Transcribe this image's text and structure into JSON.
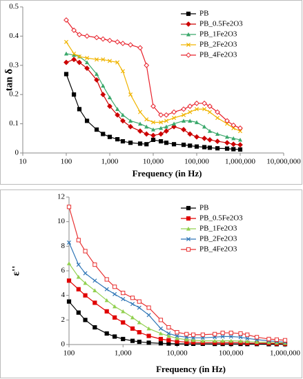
{
  "chart_data": [
    {
      "type": "line",
      "ylabel": "tan δ",
      "xlabel": "Frequency (in Hz)",
      "xscale": "log",
      "legend": "upper right",
      "xlim": [
        10,
        10000000
      ],
      "xticks": [
        10,
        100,
        {
          "value": 1000,
          "label": "1,000"
        },
        {
          "value": 10000,
          "label": "10,000"
        },
        {
          "value": 100000,
          "label": "100,000"
        },
        {
          "value": 1000000,
          "label": "1,000,000"
        },
        {
          "value": 10000000,
          "label": "10,000,000"
        }
      ],
      "ylim": [
        0,
        0.5
      ],
      "yticks": [
        0,
        0.1,
        0.2,
        0.3,
        0.4,
        0.5
      ],
      "x": [
        100,
        150,
        200,
        300,
        500,
        700,
        1000,
        1500,
        2000,
        3000,
        5000,
        7000,
        10000,
        15000,
        20000,
        30000,
        50000,
        70000,
        100000,
        150000,
        200000,
        300000,
        500000,
        700000,
        1000000
      ],
      "series": [
        {
          "name": "PB",
          "color": "#000000",
          "marker": "square",
          "values": [
            0.27,
            0.2,
            0.15,
            0.11,
            0.08,
            0.065,
            0.055,
            0.047,
            0.04,
            0.035,
            0.032,
            0.03,
            0.045,
            0.04,
            0.035,
            0.03,
            0.028,
            0.025,
            0.022,
            0.02,
            0.018,
            0.016,
            0.015,
            0.013,
            0.012
          ]
        },
        {
          "name": "PB_0.5Fe2O3",
          "color": "#cc0000",
          "marker": "diamond",
          "values": [
            0.31,
            0.32,
            0.31,
            0.29,
            0.25,
            0.2,
            0.16,
            0.13,
            0.11,
            0.09,
            0.075,
            0.065,
            0.06,
            0.065,
            0.075,
            0.09,
            0.08,
            0.065,
            0.055,
            0.05,
            0.045,
            0.04,
            0.035,
            0.03,
            0.028
          ]
        },
        {
          "name": "PB_1Fe2O3",
          "color": "#3aa86b",
          "marker": "triangle",
          "values": [
            0.34,
            0.335,
            0.33,
            0.31,
            0.27,
            0.23,
            0.19,
            0.15,
            0.13,
            0.11,
            0.1,
            0.09,
            0.08,
            0.085,
            0.09,
            0.1,
            0.11,
            0.11,
            0.105,
            0.09,
            0.075,
            0.065,
            0.055,
            0.05,
            0.045
          ]
        },
        {
          "name": "PB_2Fe2O3",
          "color": "#f0b400",
          "marker": "cross",
          "values": [
            0.38,
            0.34,
            0.33,
            0.325,
            0.32,
            0.32,
            0.315,
            0.31,
            0.28,
            0.2,
            0.14,
            0.115,
            0.105,
            0.105,
            0.11,
            0.12,
            0.13,
            0.14,
            0.15,
            0.15,
            0.14,
            0.12,
            0.1,
            0.085,
            0.075
          ]
        },
        {
          "name": "PB_4Fe2O3",
          "color": "#e8202a",
          "marker": "open-diamond",
          "values": [
            0.455,
            0.42,
            0.405,
            0.4,
            0.395,
            0.39,
            0.385,
            0.38,
            0.375,
            0.37,
            0.36,
            0.3,
            0.16,
            0.13,
            0.13,
            0.14,
            0.15,
            0.16,
            0.17,
            0.17,
            0.16,
            0.14,
            0.11,
            0.095,
            0.085
          ]
        }
      ]
    },
    {
      "type": "line",
      "ylabel": "ε''",
      "xlabel": "Frequency (in Hz)",
      "xscale": "log",
      "legend": "upper right",
      "xlim": [
        100,
        1000000
      ],
      "xticks": [
        100,
        {
          "value": 1000,
          "label": "1,000"
        },
        {
          "value": 10000,
          "label": "10,000"
        },
        {
          "value": 100000,
          "label": "100,000"
        },
        {
          "value": 1000000,
          "label": "1,000,000"
        }
      ],
      "ylim": [
        0,
        12
      ],
      "yticks": [
        0,
        2,
        4,
        6,
        8,
        10,
        12
      ],
      "x": [
        100,
        150,
        200,
        300,
        500,
        700,
        1000,
        1500,
        2000,
        3000,
        5000,
        7000,
        10000,
        15000,
        20000,
        30000,
        50000,
        70000,
        100000,
        150000,
        200000,
        300000,
        500000,
        700000,
        1000000
      ],
      "series": [
        {
          "name": "PB",
          "color": "#000000",
          "marker": "square",
          "values": [
            3.5,
            2.6,
            2.0,
            1.4,
            0.9,
            0.65,
            0.45,
            0.3,
            0.22,
            0.15,
            0.1,
            0.08,
            0.06,
            0.06,
            0.06,
            0.06,
            0.05,
            0.05,
            0.05,
            0.05,
            0.04,
            0.04,
            0.03,
            0.03,
            0.03
          ]
        },
        {
          "name": "PB_0.5Fe2O3",
          "color": "#e00000",
          "marker": "square",
          "values": [
            5.2,
            4.5,
            4.0,
            3.4,
            2.7,
            2.2,
            1.8,
            1.3,
            1.0,
            0.7,
            0.45,
            0.35,
            0.25,
            0.2,
            0.18,
            0.15,
            0.15,
            0.15,
            0.15,
            0.15,
            0.12,
            0.1,
            0.1,
            0.08,
            0.07
          ]
        },
        {
          "name": "PB_1Fe2O3",
          "color": "#92d050",
          "marker": "triangle",
          "values": [
            6.6,
            5.5,
            5.0,
            4.4,
            3.6,
            3.1,
            2.7,
            2.2,
            1.8,
            1.3,
            0.9,
            0.7,
            0.5,
            0.4,
            0.35,
            0.3,
            0.3,
            0.3,
            0.3,
            0.28,
            0.25,
            0.2,
            0.18,
            0.15,
            0.12
          ]
        },
        {
          "name": "PB_2Fe2O3",
          "color": "#2e75b6",
          "marker": "cross",
          "values": [
            8.3,
            6.5,
            5.8,
            5.2,
            4.5,
            4.1,
            3.7,
            3.3,
            3.0,
            2.4,
            1.3,
            0.9,
            0.7,
            0.6,
            0.55,
            0.55,
            0.6,
            0.65,
            0.65,
            0.6,
            0.5,
            0.4,
            0.3,
            0.25,
            0.2
          ]
        },
        {
          "name": "PB_4Fe2O3",
          "color": "#e83030",
          "marker": "open-square",
          "values": [
            11.2,
            8.5,
            7.6,
            6.5,
            5.3,
            4.7,
            4.2,
            3.8,
            3.5,
            3.0,
            2.0,
            1.4,
            1.0,
            0.85,
            0.8,
            0.8,
            0.85,
            0.95,
            0.95,
            0.9,
            0.8,
            0.6,
            0.45,
            0.4,
            0.35
          ]
        }
      ]
    }
  ]
}
